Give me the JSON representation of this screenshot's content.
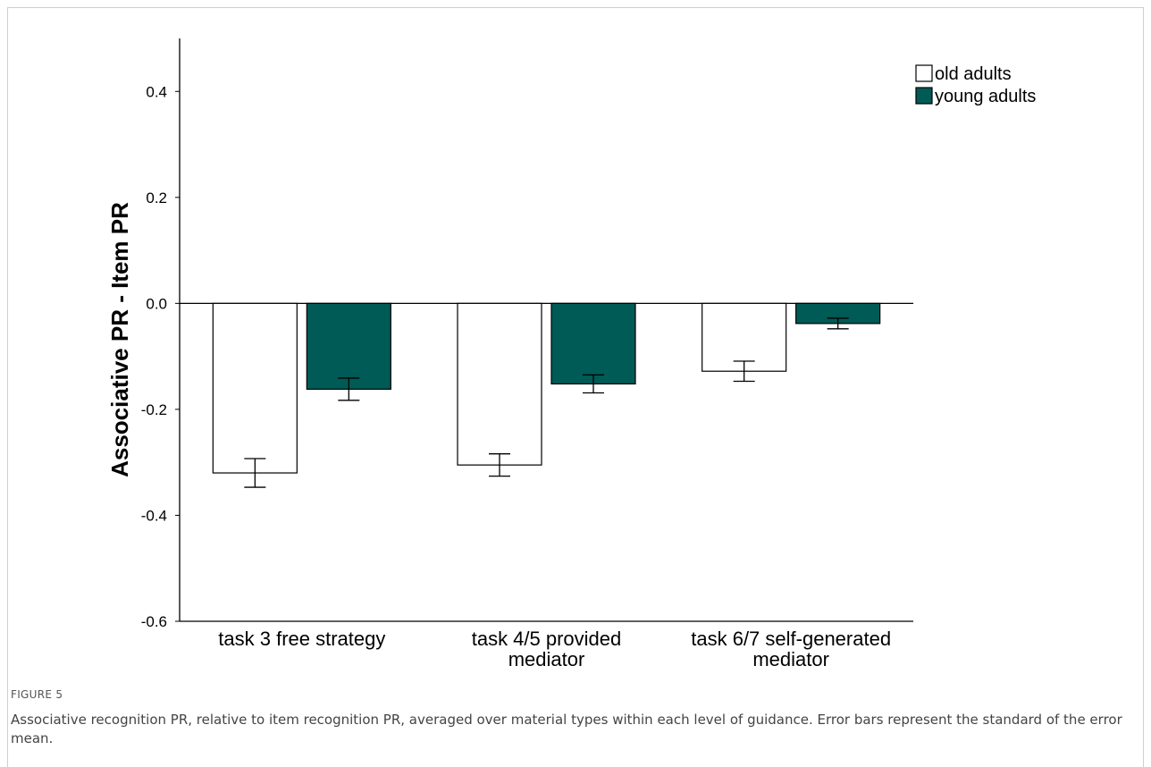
{
  "figure": {
    "label": "FIGURE 5",
    "caption": "Associative recognition PR, relative to item recognition PR, averaged over material types within each level of guidance. Error bars represent the standard of the error mean."
  },
  "colors": {
    "old": "#ffffff",
    "young": "#005a55",
    "stroke": "#000000"
  },
  "chart_data": {
    "type": "bar",
    "title": "",
    "ylabel": "Associative PR - Item PR",
    "xlabel": "",
    "ylim": [
      -0.6,
      0.5
    ],
    "yticks": [
      0.4,
      0.2,
      0.0,
      -0.2,
      -0.4,
      -0.6
    ],
    "ytick_labels": [
      "0.4",
      "0.2",
      "0.0",
      "-0.2",
      "-0.4",
      "-0.6"
    ],
    "legend_position": "top-right",
    "categories": [
      [
        "task 3 free strategy"
      ],
      [
        "task 4/5 provided",
        "mediator"
      ],
      [
        "task 6/7 self-generated",
        "mediator"
      ]
    ],
    "series": [
      {
        "name": "old adults",
        "color": "#ffffff",
        "values": [
          -0.32,
          -0.305,
          -0.128
        ],
        "error": [
          0.027,
          0.021,
          0.019
        ]
      },
      {
        "name": "young adults",
        "color": "#005a55",
        "values": [
          -0.162,
          -0.152,
          -0.038
        ],
        "error": [
          0.021,
          0.017,
          0.01
        ]
      }
    ]
  }
}
